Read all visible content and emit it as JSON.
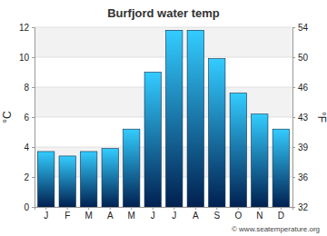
{
  "chart_data": {
    "type": "bar",
    "title": "Burfjord water temp",
    "y_label": "°C",
    "y2_label": "°F",
    "categories": [
      "J",
      "F",
      "M",
      "A",
      "M",
      "J",
      "J",
      "A",
      "S",
      "O",
      "N",
      "D"
    ],
    "values": [
      3.7,
      3.4,
      3.7,
      3.9,
      5.2,
      9.0,
      11.8,
      11.8,
      9.9,
      7.6,
      6.2,
      5.2
    ],
    "color": "#33ccff",
    "ylim": [
      0,
      12
    ],
    "yticks": [
      0,
      2,
      4,
      6,
      8,
      10,
      12
    ],
    "y2lim": [
      32,
      53.6
    ],
    "y2ticks": [
      {
        "value": 32,
        "label": "32"
      },
      {
        "value": 35.6,
        "label": "36"
      },
      {
        "value": 39.2,
        "label": "39"
      },
      {
        "value": 42.8,
        "label": "43"
      },
      {
        "value": 46.4,
        "label": "46"
      },
      {
        "value": 50,
        "label": "50"
      },
      {
        "value": 53.6,
        "label": "54"
      }
    ],
    "grid": true,
    "annotations": [
      "© www.seatemperature.org"
    ]
  }
}
